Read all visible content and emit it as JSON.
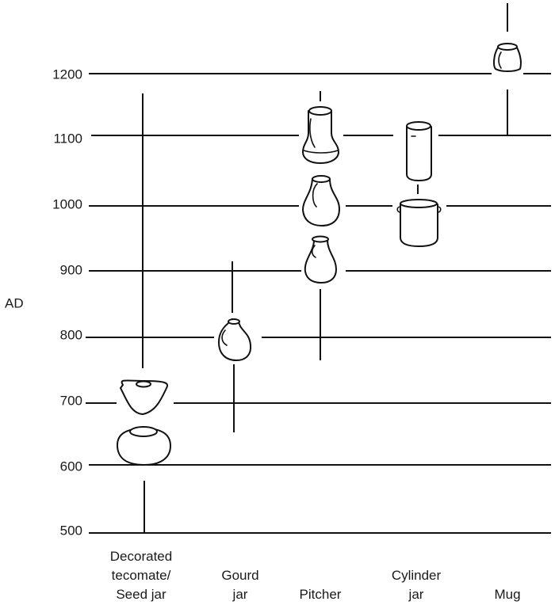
{
  "axis_title": "AD",
  "years": [
    "500",
    "600",
    "700",
    "800",
    "900",
    "1000",
    "1100",
    "1200"
  ],
  "columns": [
    {
      "label_lines": [
        "Decorated",
        "tecomate/",
        "Seed jar"
      ],
      "vessel_icons": [
        "tecomate-icon",
        "seed-jar-icon"
      ]
    },
    {
      "label_lines": [
        "Gourd",
        "jar"
      ],
      "vessel_icons": [
        "gourd-jar-icon"
      ]
    },
    {
      "label_lines": [
        "Pitcher"
      ],
      "vessel_icons": [
        "pitcher-icon"
      ]
    },
    {
      "label_lines": [
        "Cylinder",
        "jar"
      ],
      "vessel_icons": [
        "cylinder-jar-icon"
      ]
    },
    {
      "label_lines": [
        "Mug"
      ],
      "vessel_icons": [
        "mug-icon"
      ]
    }
  ],
  "colors": {
    "ink": "#111111",
    "background": "#ffffff"
  }
}
